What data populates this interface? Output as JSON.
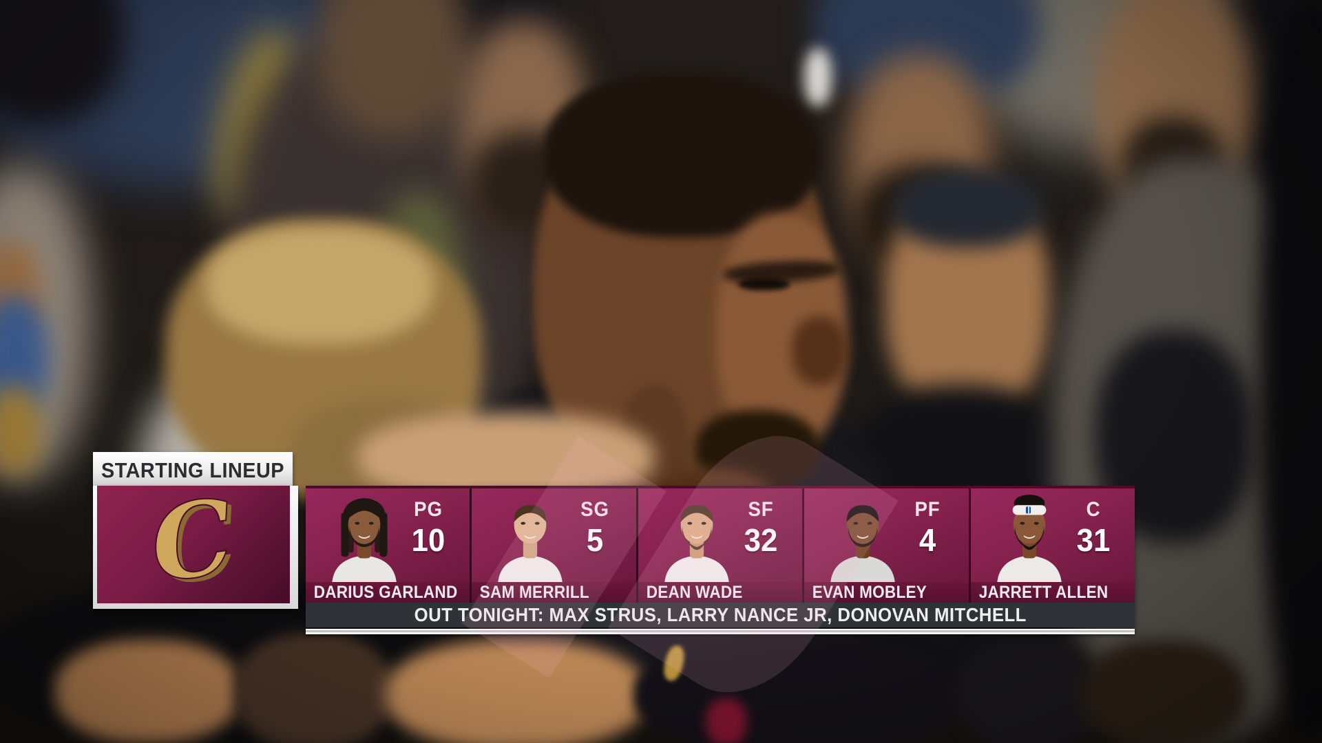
{
  "graphic": {
    "tab_label": "STARTING LINEUP",
    "team_logo_letter": "C",
    "players": [
      {
        "name": "DARIUS GARLAND",
        "position": "PG",
        "number": "10",
        "avatar": {
          "skin": "#8a5a3c",
          "hair": "#1f1712",
          "shirt": "#e9e7e3",
          "style": "dreads",
          "beard": true,
          "beard_full": false
        }
      },
      {
        "name": "SAM MERRILL",
        "position": "SG",
        "number": "5",
        "avatar": {
          "skin": "#e0b894",
          "hair": "#4a3420",
          "shirt": "#efefed",
          "style": "short",
          "beard": false,
          "beard_full": false
        }
      },
      {
        "name": "DEAN WADE",
        "position": "SF",
        "number": "32",
        "avatar": {
          "skin": "#dcae87",
          "hair": "#4f3926",
          "shirt": "#efefec",
          "style": "short",
          "beard": true,
          "beard_full": true
        }
      },
      {
        "name": "EVAN MOBLEY",
        "position": "PF",
        "number": "4",
        "avatar": {
          "skin": "#7c4f30",
          "hair": "#171210",
          "shirt": "#d9d9d7",
          "style": "short",
          "beard": true,
          "beard_full": false
        }
      },
      {
        "name": "JARRETT ALLEN",
        "position": "C",
        "number": "31",
        "avatar": {
          "skin": "#8a5838",
          "hair": "#15100c",
          "shirt": "#eceae6",
          "style": "headband",
          "beard": true,
          "beard_full": true
        }
      }
    ],
    "out_tonight": "OUT TONIGHT: MAX STRUS, LARRY NANCE JR, DONOVAN MITCHELL",
    "colors": {
      "wine": "#7a1c45",
      "wine_light": "#93265a",
      "wine_dark": "#5d1233",
      "card_gap": "#35071e",
      "gold": "#cfa85e",
      "charcoal": "#2f3236",
      "tab_text": "#2d2d2f",
      "text_light": "#f7ecf1"
    }
  }
}
